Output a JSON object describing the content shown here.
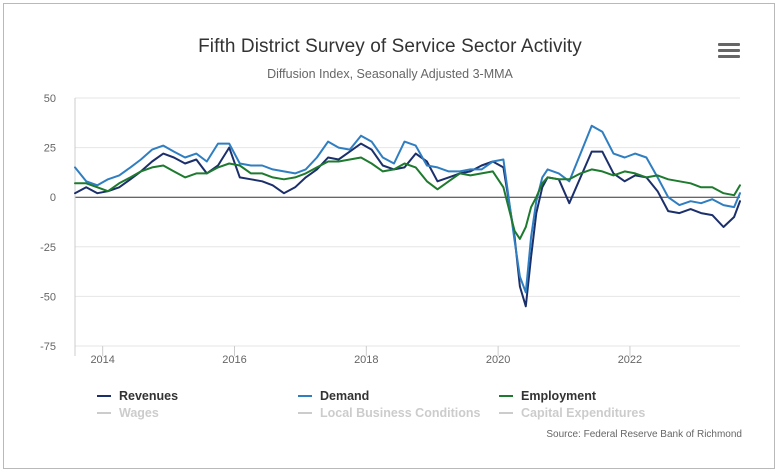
{
  "chart_data": {
    "type": "line",
    "title": "Fifth District Survey of Service Sector Activity",
    "subtitle": "Diffusion Index, Seasonally Adjusted 3-MMA",
    "xlabel": "",
    "ylabel": "",
    "ylim": [
      -75,
      50
    ],
    "yticks": [
      "50",
      "25",
      "0",
      "-25",
      "-50",
      "-75"
    ],
    "xlim": [
      2013.58,
      2023.67
    ],
    "xticks": [
      "2014",
      "2016",
      "2018",
      "2020",
      "2022"
    ],
    "grid": true,
    "legend_position": "bottom",
    "source": "Source: Federal Reserve Bank of Richmond",
    "series": [
      {
        "name": "Revenues",
        "color": "#1b2f6b",
        "visible": true,
        "x": [
          2013.58,
          2013.75,
          2013.92,
          2014.08,
          2014.25,
          2014.42,
          2014.58,
          2014.75,
          2014.92,
          2015.08,
          2015.25,
          2015.42,
          2015.58,
          2015.75,
          2015.92,
          2016.08,
          2016.25,
          2016.42,
          2016.58,
          2016.75,
          2016.92,
          2017.08,
          2017.25,
          2017.42,
          2017.58,
          2017.75,
          2017.92,
          2018.08,
          2018.25,
          2018.42,
          2018.58,
          2018.75,
          2018.92,
          2019.08,
          2019.25,
          2019.42,
          2019.58,
          2019.75,
          2019.92,
          2020.08,
          2020.25,
          2020.33,
          2020.42,
          2020.5,
          2020.58,
          2020.67,
          2020.75,
          2020.92,
          2021.08,
          2021.25,
          2021.42,
          2021.58,
          2021.75,
          2021.92,
          2022.08,
          2022.25,
          2022.42,
          2022.58,
          2022.75,
          2022.92,
          2023.08,
          2023.25,
          2023.42,
          2023.58,
          2023.67
        ],
        "values": [
          2,
          5,
          2,
          3,
          5,
          9,
          13,
          18,
          22,
          20,
          17,
          19,
          12,
          16,
          25,
          10,
          9,
          8,
          6,
          2,
          5,
          10,
          14,
          20,
          19,
          23,
          27,
          24,
          16,
          14,
          15,
          22,
          18,
          8,
          10,
          12,
          13,
          16,
          18,
          15,
          -20,
          -45,
          -55,
          -30,
          -8,
          5,
          10,
          9,
          -3,
          10,
          23,
          23,
          12,
          8,
          11,
          10,
          3,
          -7,
          -8,
          -6,
          -8,
          -9,
          -15,
          -10,
          -2
        ]
      },
      {
        "name": "Demand",
        "color": "#2f7ec1",
        "visible": true,
        "x": [
          2013.58,
          2013.75,
          2013.92,
          2014.08,
          2014.25,
          2014.42,
          2014.58,
          2014.75,
          2014.92,
          2015.08,
          2015.25,
          2015.42,
          2015.58,
          2015.75,
          2015.92,
          2016.08,
          2016.25,
          2016.42,
          2016.58,
          2016.75,
          2016.92,
          2017.08,
          2017.25,
          2017.42,
          2017.58,
          2017.75,
          2017.92,
          2018.08,
          2018.25,
          2018.42,
          2018.58,
          2018.75,
          2018.92,
          2019.08,
          2019.25,
          2019.42,
          2019.58,
          2019.75,
          2019.92,
          2020.08,
          2020.25,
          2020.33,
          2020.42,
          2020.5,
          2020.58,
          2020.67,
          2020.75,
          2020.92,
          2021.08,
          2021.25,
          2021.42,
          2021.58,
          2021.75,
          2021.92,
          2022.08,
          2022.25,
          2022.42,
          2022.58,
          2022.75,
          2022.92,
          2023.08,
          2023.25,
          2023.42,
          2023.58,
          2023.67
        ],
        "values": [
          15,
          8,
          6,
          9,
          11,
          15,
          19,
          24,
          26,
          23,
          20,
          22,
          18,
          27,
          27,
          17,
          16,
          16,
          14,
          13,
          12,
          14,
          20,
          28,
          25,
          24,
          31,
          28,
          20,
          17,
          28,
          26,
          16,
          15,
          13,
          13,
          14,
          14,
          18,
          19,
          -22,
          -40,
          -48,
          -20,
          -2,
          10,
          14,
          12,
          8,
          22,
          36,
          33,
          22,
          20,
          22,
          20,
          10,
          0,
          -4,
          -2,
          -3,
          -1,
          -4,
          -5,
          2
        ]
      },
      {
        "name": "Employment",
        "color": "#1d7a2e",
        "visible": true,
        "x": [
          2013.58,
          2013.75,
          2013.92,
          2014.08,
          2014.25,
          2014.42,
          2014.58,
          2014.75,
          2014.92,
          2015.08,
          2015.25,
          2015.42,
          2015.58,
          2015.75,
          2015.92,
          2016.08,
          2016.25,
          2016.42,
          2016.58,
          2016.75,
          2016.92,
          2017.08,
          2017.25,
          2017.42,
          2017.58,
          2017.75,
          2017.92,
          2018.08,
          2018.25,
          2018.42,
          2018.58,
          2018.75,
          2018.92,
          2019.08,
          2019.25,
          2019.42,
          2019.58,
          2019.75,
          2019.92,
          2020.08,
          2020.25,
          2020.33,
          2020.42,
          2020.5,
          2020.58,
          2020.67,
          2020.75,
          2020.92,
          2021.08,
          2021.25,
          2021.42,
          2021.58,
          2021.75,
          2021.92,
          2022.08,
          2022.25,
          2022.42,
          2022.58,
          2022.75,
          2022.92,
          2023.08,
          2023.25,
          2023.42,
          2023.58,
          2023.67
        ],
        "values": [
          7,
          7,
          5,
          3,
          7,
          10,
          13,
          15,
          16,
          13,
          10,
          12,
          12,
          15,
          17,
          16,
          12,
          12,
          10,
          9,
          10,
          12,
          15,
          18,
          18,
          19,
          20,
          17,
          13,
          14,
          17,
          15,
          8,
          4,
          8,
          12,
          11,
          12,
          13,
          5,
          -17,
          -21,
          -15,
          -5,
          0,
          7,
          10,
          9,
          9,
          12,
          14,
          13,
          11,
          13,
          12,
          10,
          11,
          9,
          8,
          7,
          5,
          5,
          2,
          1,
          6
        ]
      },
      {
        "name": "Wages",
        "color": "#cccccc",
        "visible": false
      },
      {
        "name": "Local Business Conditions",
        "color": "#cccccc",
        "visible": false
      },
      {
        "name": "Capital Expenditures",
        "color": "#cccccc",
        "visible": false
      }
    ]
  }
}
